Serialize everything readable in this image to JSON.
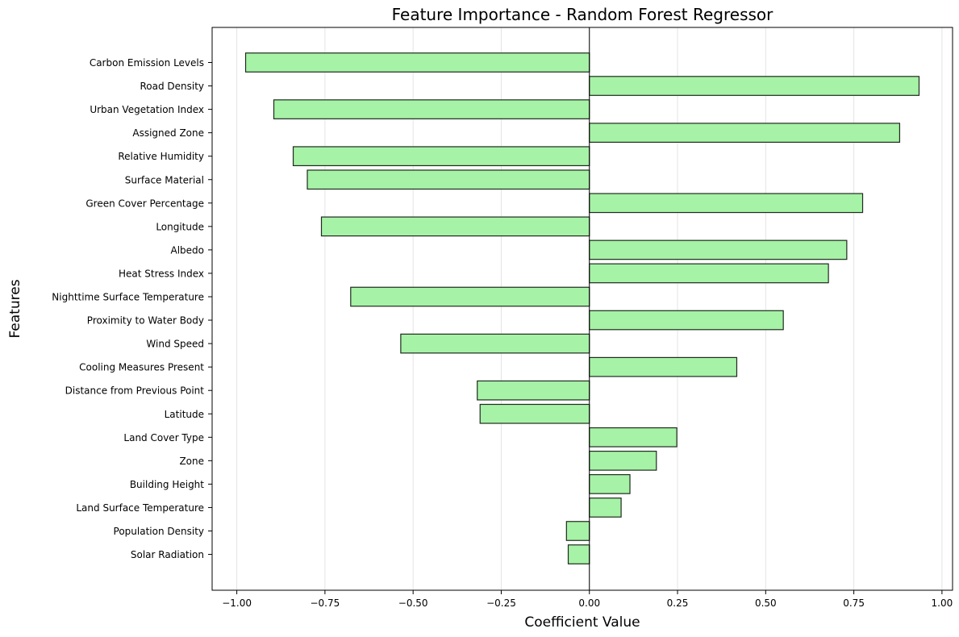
{
  "chart_data": {
    "type": "bar",
    "orientation": "horizontal",
    "title": "Feature Importance - Random Forest Regressor",
    "xlabel": "Coefficient Value",
    "ylabel": "Features",
    "xlim": [
      -1.07,
      1.03
    ],
    "xticks": [
      -1.0,
      -0.75,
      -0.5,
      -0.25,
      0.0,
      0.25,
      0.5,
      0.75,
      1.0
    ],
    "xtick_labels": [
      "−1.00",
      "−0.75",
      "−0.50",
      "−0.25",
      "0.00",
      "0.25",
      "0.50",
      "0.75",
      "1.00"
    ],
    "grid": "x",
    "bar_color": "#a6f2a6",
    "edge_color": "#1f2a1f",
    "zero_line": true,
    "categories": [
      "Carbon Emission Levels",
      "Road Density",
      "Urban Vegetation Index",
      "Assigned Zone",
      "Relative Humidity",
      "Surface Material",
      "Green Cover Percentage",
      "Longitude",
      "Albedo",
      "Heat Stress Index",
      "Nighttime Surface Temperature",
      "Proximity to Water Body",
      "Wind Speed",
      "Cooling Measures Present",
      "Distance from Previous Point",
      "Latitude",
      "Land Cover Type",
      "Zone",
      "Building Height",
      "Land Surface Temperature",
      "Population Density",
      "Solar Radiation"
    ],
    "values": [
      -0.975,
      0.935,
      -0.895,
      0.88,
      -0.84,
      -0.8,
      0.775,
      -0.76,
      0.73,
      0.678,
      -0.677,
      0.55,
      -0.535,
      0.418,
      -0.318,
      -0.31,
      0.248,
      0.19,
      0.115,
      0.09,
      -0.065,
      -0.06
    ]
  }
}
